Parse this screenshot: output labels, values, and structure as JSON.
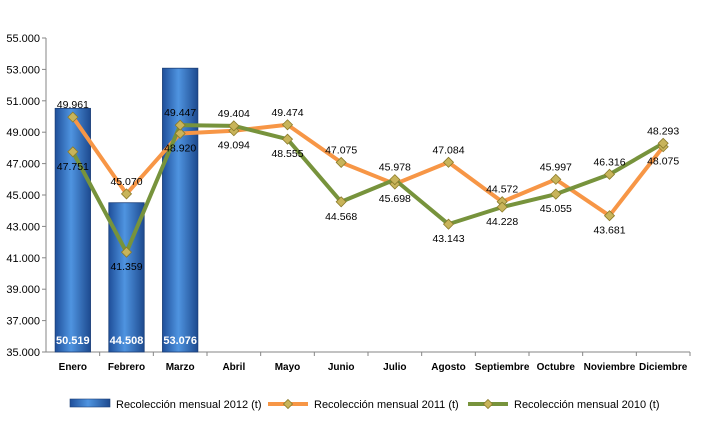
{
  "chart_data": {
    "type": "bar+line",
    "categories": [
      "Enero",
      "Febrero",
      "Marzo",
      "Abril",
      "Mayo",
      "Junio",
      "Julio",
      "Agosto",
      "Septiembre",
      "Octubre",
      "Noviembre",
      "Diciembre"
    ],
    "ylim": [
      35000,
      55000
    ],
    "ytick_step": 2000,
    "ytick_labels": [
      "35.000",
      "37.000",
      "39.000",
      "41.000",
      "43.000",
      "45.000",
      "47.000",
      "49.000",
      "51.000",
      "53.000",
      "55.000"
    ],
    "grid": false,
    "legend_position": "bottom",
    "series": [
      {
        "name": "Recolección mensual 2012 (t)",
        "kind": "bar",
        "color": "#3a78c8",
        "values": [
          50519,
          44508,
          53076,
          null,
          null,
          null,
          null,
          null,
          null,
          null,
          null,
          null
        ],
        "labels": [
          "50.519",
          "44.508",
          "53.076",
          "",
          "",
          "",
          "",
          "",
          "",
          "",
          "",
          ""
        ]
      },
      {
        "name": "Recolección mensual 2011 (t)",
        "kind": "line",
        "color": "#f79646",
        "values": [
          49961,
          45070,
          48920,
          49094,
          49474,
          47075,
          45698,
          47084,
          44572,
          45997,
          43681,
          48075
        ],
        "labels": [
          "49.961",
          "45.070",
          "48.920",
          "49.094",
          "49.474",
          "47.075",
          "45.698",
          "47.084",
          "44.572",
          "45.997",
          "43.681",
          "48.075"
        ]
      },
      {
        "name": "Recolección mensual 2010 (t)",
        "kind": "line",
        "color": "#77933c",
        "values": [
          47751,
          41359,
          49447,
          49404,
          48555,
          44568,
          45978,
          43143,
          44228,
          45055,
          46316,
          48293
        ],
        "labels": [
          "47.751",
          "41.359",
          "49.447",
          "49.404",
          "48.555",
          "44.568",
          "45.978",
          "43.143",
          "44.228",
          "45.055",
          "46.316",
          "48.293"
        ]
      }
    ]
  }
}
